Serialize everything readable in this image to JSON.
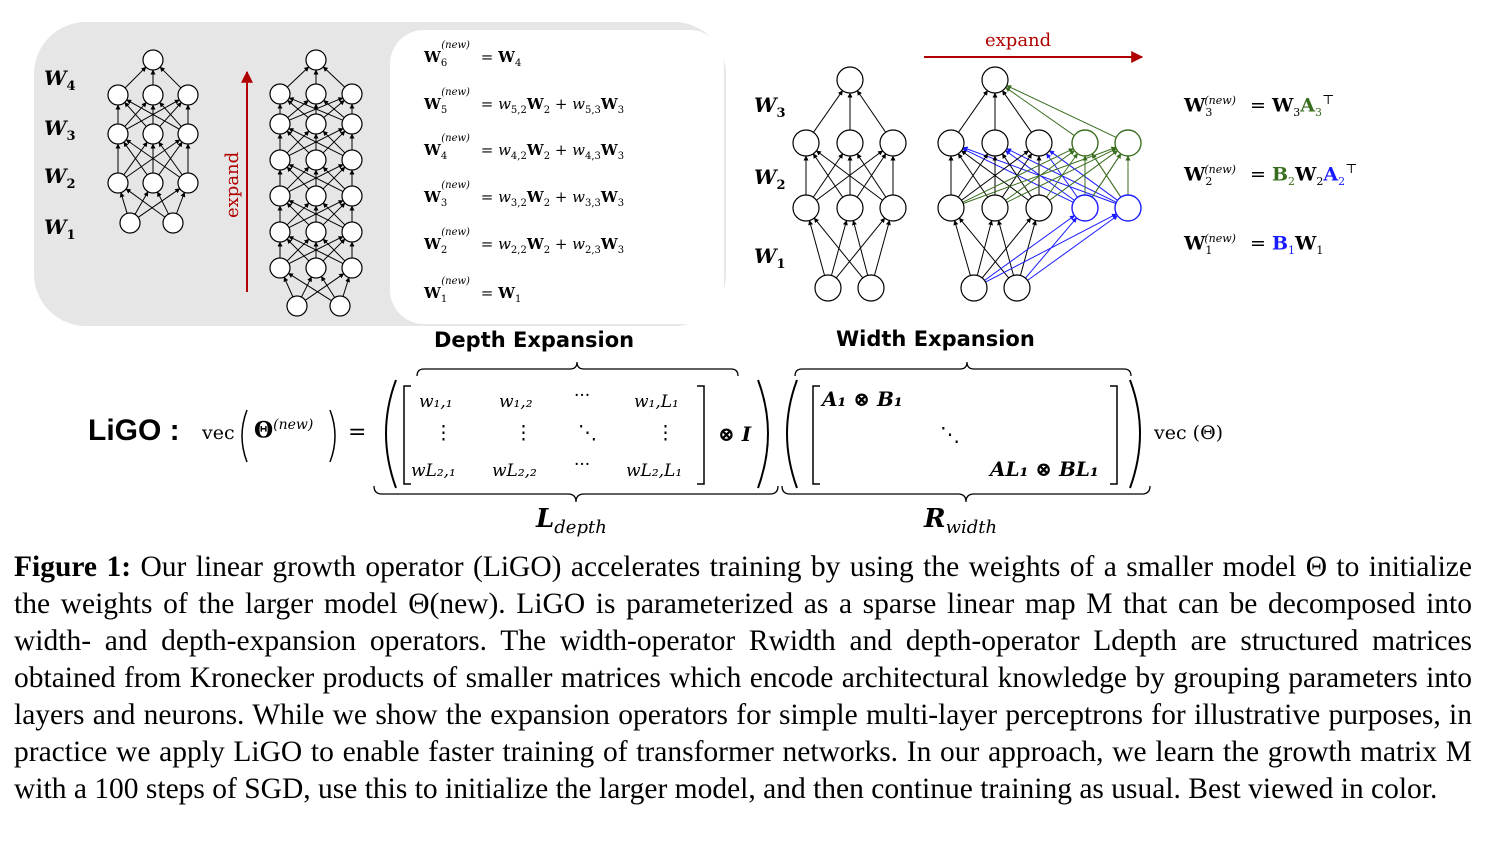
{
  "depth_panel": {
    "layer_labels": [
      "W",
      "W",
      "W",
      "W"
    ],
    "layer_subs": [
      "4",
      "3",
      "2",
      "1"
    ],
    "expand_label": "expand",
    "equations": [
      {
        "lhs_sub": "6",
        "rhs": "= W",
        "rhs_sub": "4"
      },
      {
        "lhs_sub": "5",
        "rhs": "= w",
        "rhs_sub": "5,2",
        "tail": "W₂ + w₅,₃W₃"
      },
      {
        "lhs_sub": "4",
        "rhs": "= w",
        "rhs_sub": "4,2",
        "tail": "W₂ + w₄,₃W₃"
      },
      {
        "lhs_sub": "3",
        "rhs": "= w",
        "rhs_sub": "3,2",
        "tail": "W₂ + w₃,₃W₃"
      },
      {
        "lhs_sub": "2",
        "rhs": "= w",
        "rhs_sub": "2,2",
        "tail": "W₂ + w₂,₃W₃"
      },
      {
        "lhs_sub": "1",
        "rhs": "= W",
        "rhs_sub": "1"
      }
    ],
    "new_sup": "(new)",
    "title": "Depth Expansion"
  },
  "width_panel": {
    "layer_labels": [
      "W",
      "W",
      "W"
    ],
    "layer_subs": [
      "3",
      "2",
      "1"
    ],
    "expand_label": "expand",
    "title": "Width Expansion",
    "eq3": "= W₃A₃",
    "eq2": "= B₂W₂A₂",
    "eq1": "= B₁W₁",
    "transpose": "⊤",
    "colors": {
      "green": "#3a6e1f",
      "blue": "#1a1aff",
      "red": "#b00000"
    }
  },
  "formula": {
    "ligo": "LiGO :",
    "vec": "vec",
    "theta_new": "Θ",
    "new_sup": "(new)",
    "equals": "=",
    "otimes_I": "⊗ I",
    "vec_theta": "vec (Θ)",
    "L_label": "L",
    "L_sub": "depth",
    "R_label": "R",
    "R_sub": "width",
    "L_matrix": [
      [
        "w₁,₁",
        "w₁,₂",
        "···",
        "w₁,L₁"
      ],
      [
        "⋮",
        "⋮",
        "⋱",
        "⋮"
      ],
      [
        "wL₂,₁",
        "wL₂,₂",
        "···",
        "wL₂,L₁"
      ]
    ],
    "R_matrix": [
      "A₁ ⊗ B₁",
      "⋱",
      "AL₁ ⊗ BL₁"
    ]
  },
  "caption": {
    "label": "Figure 1:",
    "text": " Our linear growth operator (LiGO) accelerates training by using the weights of a smaller model Θ to initialize the weights of the larger model Θ(new). LiGO is parameterized as a sparse linear map M that can be decomposed into width- and depth-expansion operators. The width-operator Rwidth and depth-operator Ldepth are structured matrices obtained from Kronecker products of smaller matrices which encode architectural knowledge by grouping parameters into layers and neurons. While we show the expansion operators for simple multi-layer perceptrons for illustrative purposes, in practice we apply LiGO to enable faster training of transformer networks. In our approach, we learn the growth matrix M with a 100 steps of SGD, use this to initialize the larger model, and then continue training as usual. Best viewed in color."
  }
}
